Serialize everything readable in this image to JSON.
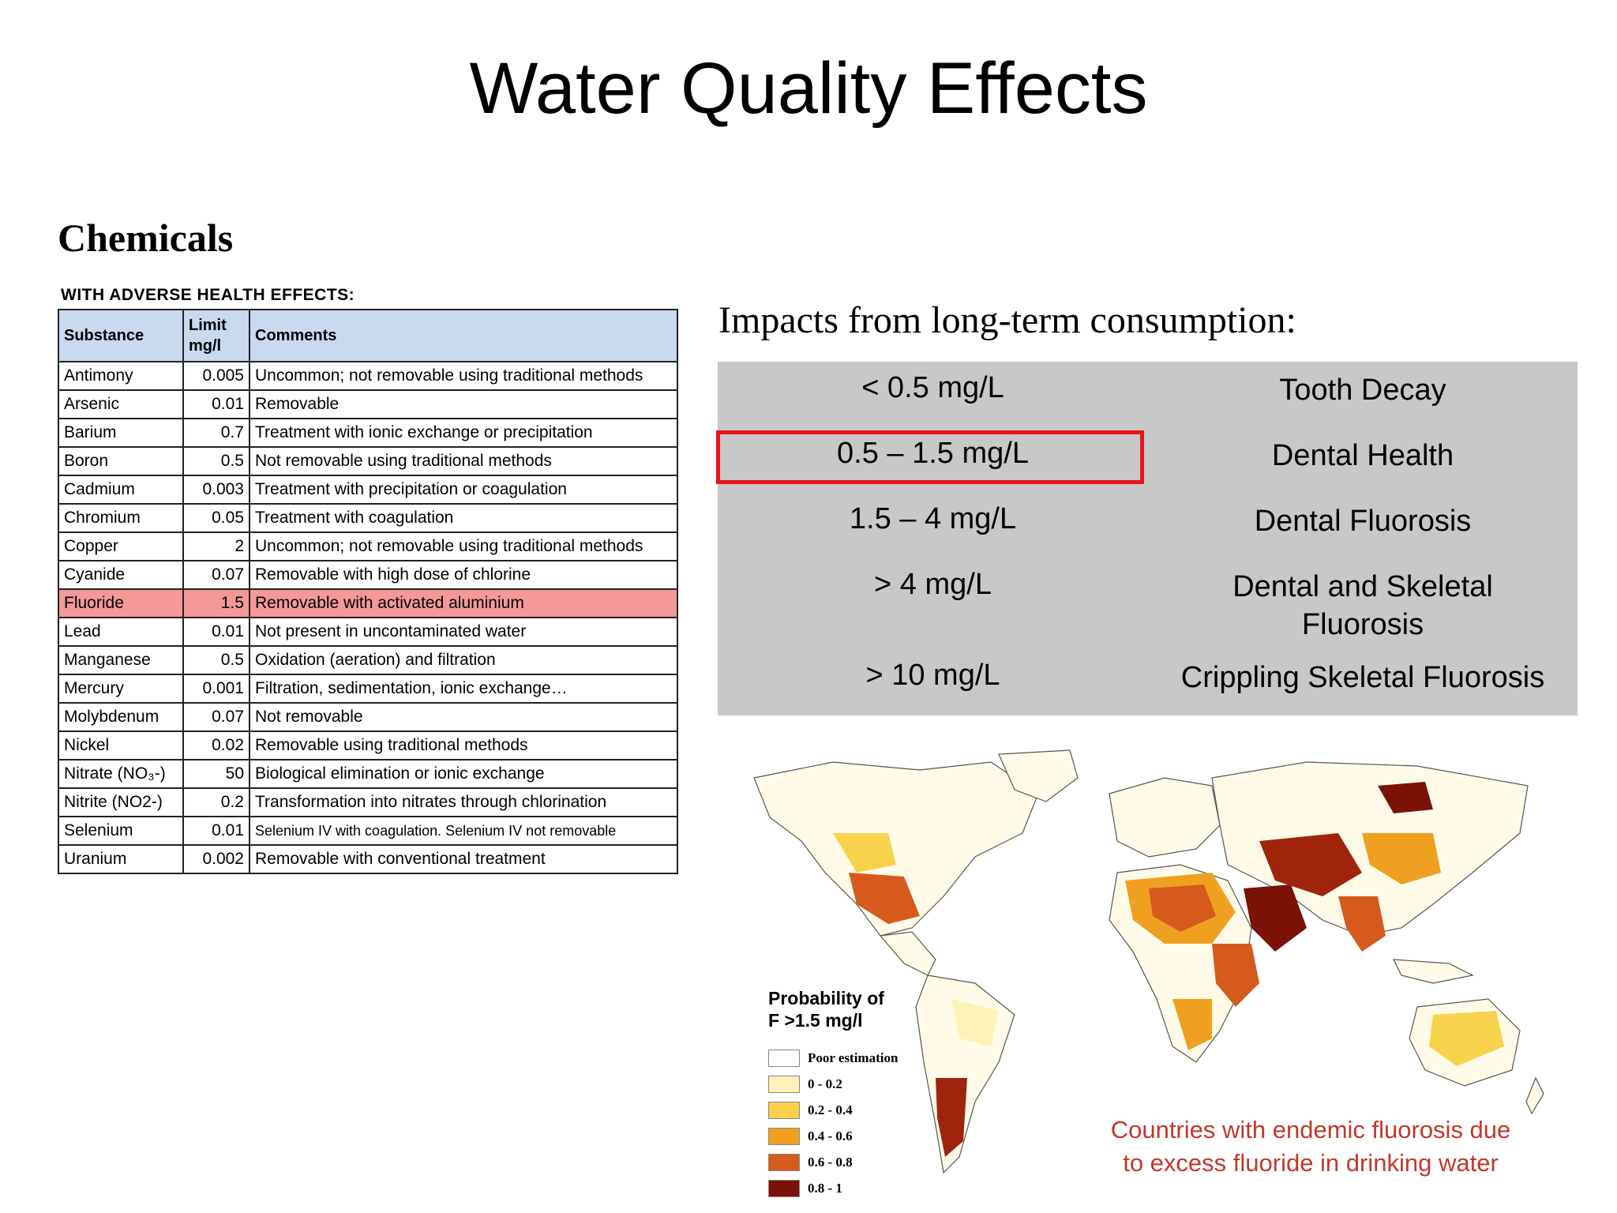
{
  "title": "Water Quality Effects",
  "chemicals_heading": "Chemicals",
  "table": {
    "caption": "WITH ADVERSE HEALTH EFFECTS:",
    "headers": {
      "substance": "Substance",
      "limit_line1": "Limit",
      "limit_line2": "mg/l",
      "comments": "Comments"
    },
    "rows": [
      {
        "substance": "Antimony",
        "limit": "0.005",
        "comment": "Uncommon;  not removable using traditional methods"
      },
      {
        "substance": "Arsenic",
        "limit": "0.01",
        "comment": "Removable"
      },
      {
        "substance": "Barium",
        "limit": "0.7",
        "comment": "Treatment with ionic exchange or precipitation"
      },
      {
        "substance": "Boron",
        "limit": "0.5",
        "comment": "Not removable using traditional methods"
      },
      {
        "substance": "Cadmium",
        "limit": "0.003",
        "comment": "Treatment with precipitation or coagulation"
      },
      {
        "substance": "Chromium",
        "limit": "0.05",
        "comment": "Treatment with coagulation"
      },
      {
        "substance": "Copper",
        "limit": "2",
        "comment": "Uncommon; not removable using traditional methods"
      },
      {
        "substance": "Cyanide",
        "limit": "0.07",
        "comment": "Removable with high dose of chlorine"
      },
      {
        "substance": "Fluoride",
        "limit": "1.5",
        "comment": "Removable with activated aluminium"
      },
      {
        "substance": "Lead",
        "limit": "0.01",
        "comment": "Not present in uncontaminated water"
      },
      {
        "substance": "Manganese",
        "limit": "0.5",
        "comment": "Oxidation (aeration) and filtration"
      },
      {
        "substance": "Mercury",
        "limit": "0.001",
        "comment": "Filtration, sedimentation, ionic exchange…"
      },
      {
        "substance": "Molybdenum",
        "limit": "0.07",
        "comment": "Not removable"
      },
      {
        "substance": "Nickel",
        "limit": "0.02",
        "comment": "Removable using traditional methods"
      },
      {
        "substance": "Nitrate (NO₃-)",
        "limit": "50",
        "comment": "Biological elimination or ionic exchange"
      },
      {
        "substance": "Nitrite (NO2-)",
        "limit": "0.2",
        "comment": "Transformation  into nitrates through chlorination"
      },
      {
        "substance": "Selenium",
        "limit": "0.01",
        "comment": "Selenium IV with coagulation. Selenium IV not removable"
      },
      {
        "substance": "Uranium",
        "limit": "0.002",
        "comment": "Removable with conventional treatment"
      }
    ]
  },
  "impacts": {
    "heading": "Impacts from long-term consumption:",
    "rows": [
      {
        "range": "< 0.5 mg/L",
        "effect": "Tooth Decay"
      },
      {
        "range": "0.5 – 1.5 mg/L",
        "effect": "Dental Health"
      },
      {
        "range": "1.5 – 4 mg/L",
        "effect": "Dental Fluorosis"
      },
      {
        "range": "> 4 mg/L",
        "effect": "Dental and Skeletal\nFluorosis"
      },
      {
        "range": "> 10 mg/L",
        "effect": "Crippling Skeletal Fluorosis"
      }
    ]
  },
  "map": {
    "legend_title_line1": "Probability of",
    "legend_title_line2": "F >1.5 mg/l",
    "legend": [
      {
        "label": "Poor estimation",
        "color": "#ffffff"
      },
      {
        "label": "0 - 0.2",
        "color": "#fdf3b8"
      },
      {
        "label": "0.2 - 0.4",
        "color": "#f8d24a"
      },
      {
        "label": "0.4 - 0.6",
        "color": "#f0a020"
      },
      {
        "label": "0.6 - 0.8",
        "color": "#d65a1c"
      },
      {
        "label": "0.8 - 1",
        "color": "#7a1208"
      }
    ],
    "caption_line1": "Countries with endemic fluorosis due",
    "caption_line2": "to excess fluoride in drinking water"
  }
}
